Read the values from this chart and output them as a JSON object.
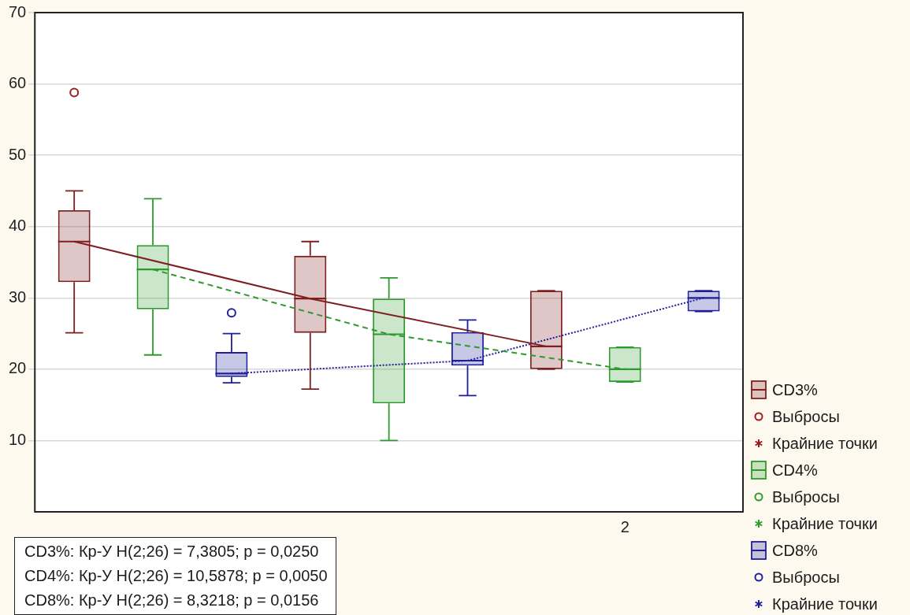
{
  "chart_data": {
    "type": "box",
    "categories": [
      null,
      null,
      null,
      null,
      null,
      null,
      null,
      "2",
      null
    ],
    "ylim": [
      0,
      70
    ],
    "yticks": [
      10,
      20,
      30,
      40,
      50,
      60,
      70
    ],
    "grid": "y",
    "legend": "right",
    "series": [
      {
        "name": "CD3%",
        "color": "#7f1f1f",
        "boxes": [
          {
            "low": 25.1,
            "q1": 32.2,
            "median": 37.9,
            "q3": 42.3,
            "high": 45
          },
          null,
          null,
          {
            "low": 17.2,
            "q1": 25.1,
            "median": 29.9,
            "q3": 35.9,
            "high": 37.9
          },
          null,
          null,
          {
            "low": 20,
            "q1": 20,
            "median": 23.2,
            "q3": 31,
            "high": 31
          },
          null,
          null
        ]
      },
      {
        "type": "line",
        "color": "#7f1f1f",
        "line_style": "solid",
        "values": [
          37.9,
          null,
          null,
          29.9,
          null,
          null,
          23.2,
          null,
          null
        ]
      },
      {
        "type": "scatter",
        "name": "Выбросы",
        "color": "#9b1c1c",
        "marker": "circle",
        "values": [
          58.8,
          null,
          null,
          null,
          null,
          null,
          null,
          null,
          null
        ]
      },
      {
        "type": "scatter",
        "name": "Крайние точки",
        "color": "#9b1c1c",
        "marker": "star",
        "values": [
          null,
          null,
          null,
          null,
          null,
          null,
          null,
          null,
          null
        ]
      },
      {
        "name": "CD4%",
        "color": "#2e9a2e",
        "boxes": [
          null,
          {
            "low": 22,
            "q1": 28.4,
            "median": 34,
            "q3": 37.4,
            "high": 43.9
          },
          null,
          null,
          {
            "low": 10,
            "q1": 15.2,
            "median": 24.9,
            "q3": 29.9,
            "high": 32.8
          },
          null,
          null,
          {
            "low": 18.2,
            "q1": 18.2,
            "median": 20,
            "q3": 23.1,
            "high": 23.1
          },
          null
        ]
      },
      {
        "type": "line",
        "color": "#2e9a2e",
        "line_style": "dashed",
        "values": [
          null,
          34,
          null,
          null,
          24.9,
          null,
          null,
          20,
          null
        ]
      },
      {
        "type": "scatter",
        "name": "Выбросы",
        "color": "#2e9a2e",
        "marker": "circle",
        "values": [
          null,
          null,
          null,
          null,
          null,
          null,
          null,
          null,
          null
        ]
      },
      {
        "type": "scatter",
        "name": "Крайние точки",
        "color": "#2e9a2e",
        "marker": "star",
        "values": [
          null,
          null,
          null,
          null,
          null,
          null,
          null,
          null,
          null
        ]
      },
      {
        "name": "CD8%",
        "color": "#1f1f9a",
        "boxes": [
          null,
          null,
          {
            "low": 18.1,
            "q1": 18.9,
            "median": 19.4,
            "q3": 22.4,
            "high": 25
          },
          null,
          null,
          {
            "low": 16.3,
            "q1": 20.5,
            "median": 21.2,
            "q3": 25.2,
            "high": 26.9
          },
          null,
          null,
          {
            "low": 28.1,
            "q1": 28.1,
            "median": 30,
            "q3": 31,
            "high": 31
          }
        ]
      },
      {
        "type": "line",
        "color": "#1f1f9a",
        "line_style": "dotted",
        "values": [
          null,
          null,
          19.4,
          null,
          null,
          21.2,
          null,
          null,
          30
        ]
      },
      {
        "type": "scatter",
        "name": "Выбросы",
        "color": "#1f1f9a",
        "marker": "circle",
        "values": [
          null,
          null,
          27.9,
          null,
          null,
          null,
          null,
          null,
          null
        ]
      },
      {
        "type": "scatter",
        "name": "Крайние точки",
        "color": "#1f1f9a",
        "marker": "star",
        "values": [
          null,
          null,
          null,
          null,
          null,
          null,
          null,
          null,
          null
        ]
      }
    ],
    "annotations": [
      "CD3%:  Кр-У H(2;26) = 7,3805; p = 0,0250",
      "CD4%:  Кр-У H(2;26) = 10,5878; p = 0,0050",
      "CD8%:  Кр-У H(2;26) = 8,3218; p = 0,0156"
    ]
  }
}
